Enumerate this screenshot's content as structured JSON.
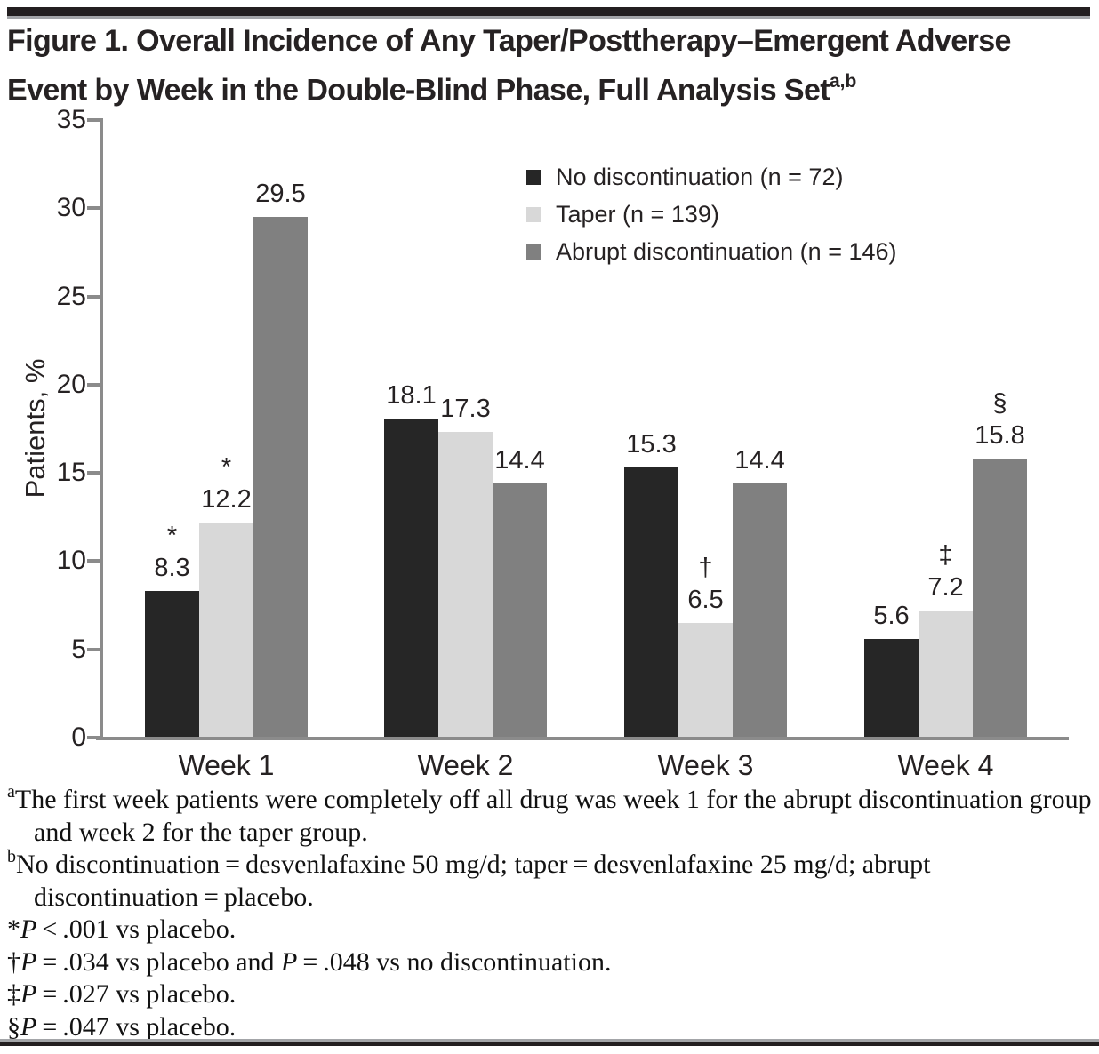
{
  "figure": {
    "title_line1": "Figure 1. Overall Incidence of Any Taper/Posttherapy–Emergent Adverse",
    "title_line2": "Event by Week in the Double-Blind Phase, Full Analysis Set",
    "title_superscript": "a,b"
  },
  "chart_data": {
    "type": "bar",
    "title": "Overall Incidence of Any Taper/Posttherapy–Emergent Adverse Event by Week in the Double-Blind Phase",
    "xlabel": "",
    "ylabel": "Patients, %",
    "ylim": [
      0,
      35
    ],
    "yticks": [
      0,
      5,
      10,
      15,
      20,
      25,
      30,
      35
    ],
    "grid": false,
    "legend_position": "top-right",
    "categories": [
      "Week 1",
      "Week 2",
      "Week 3",
      "Week 4"
    ],
    "series": [
      {
        "key": "no-discontinuation",
        "name": "No discontinuation (n = 72)",
        "color": "#262626",
        "values": [
          8.3,
          18.1,
          15.3,
          5.6
        ],
        "markers": [
          "*",
          "",
          "",
          ""
        ]
      },
      {
        "key": "taper",
        "name": "Taper (n = 139)",
        "color": "#d8d8d8",
        "values": [
          12.2,
          17.3,
          6.5,
          7.2
        ],
        "markers": [
          "*",
          "",
          "†",
          "‡"
        ]
      },
      {
        "key": "abrupt-discontinuation",
        "name": "Abrupt discontinuation (n = 146)",
        "color": "#808080",
        "values": [
          29.5,
          14.4,
          14.4,
          15.8
        ],
        "markers": [
          "",
          "",
          "",
          "§"
        ]
      }
    ]
  },
  "footnotes": [
    {
      "id": "a",
      "marker": "a",
      "marker_type": "sup",
      "segments": [
        {
          "t": "The first week patients were completely off all drug was week 1 for the abrupt discontinuation group and week 2 for the taper group."
        }
      ]
    },
    {
      "id": "b",
      "marker": "b",
      "marker_type": "sup",
      "segments": [
        {
          "t": "No discontinuation = desvenlafaxine 50 mg/d; taper = desvenlafaxine 25 mg/d; abrupt discontinuation = placebo."
        }
      ]
    },
    {
      "id": "asterisk",
      "marker": "*",
      "marker_type": "inline",
      "segments": [
        {
          "i": "P"
        },
        {
          "t": " < .001 vs placebo."
        }
      ]
    },
    {
      "id": "dagger",
      "marker": "†",
      "marker_type": "inline",
      "segments": [
        {
          "i": "P"
        },
        {
          "t": " = .034 vs placebo and "
        },
        {
          "i": "P"
        },
        {
          "t": " = .048 vs no discontinuation."
        }
      ]
    },
    {
      "id": "double-dagger",
      "marker": "‡",
      "marker_type": "inline",
      "segments": [
        {
          "i": "P"
        },
        {
          "t": " = .027 vs placebo."
        }
      ]
    },
    {
      "id": "section",
      "marker": "§",
      "marker_type": "inline",
      "segments": [
        {
          "i": "P"
        },
        {
          "t": " = .047 vs placebo."
        }
      ]
    }
  ]
}
